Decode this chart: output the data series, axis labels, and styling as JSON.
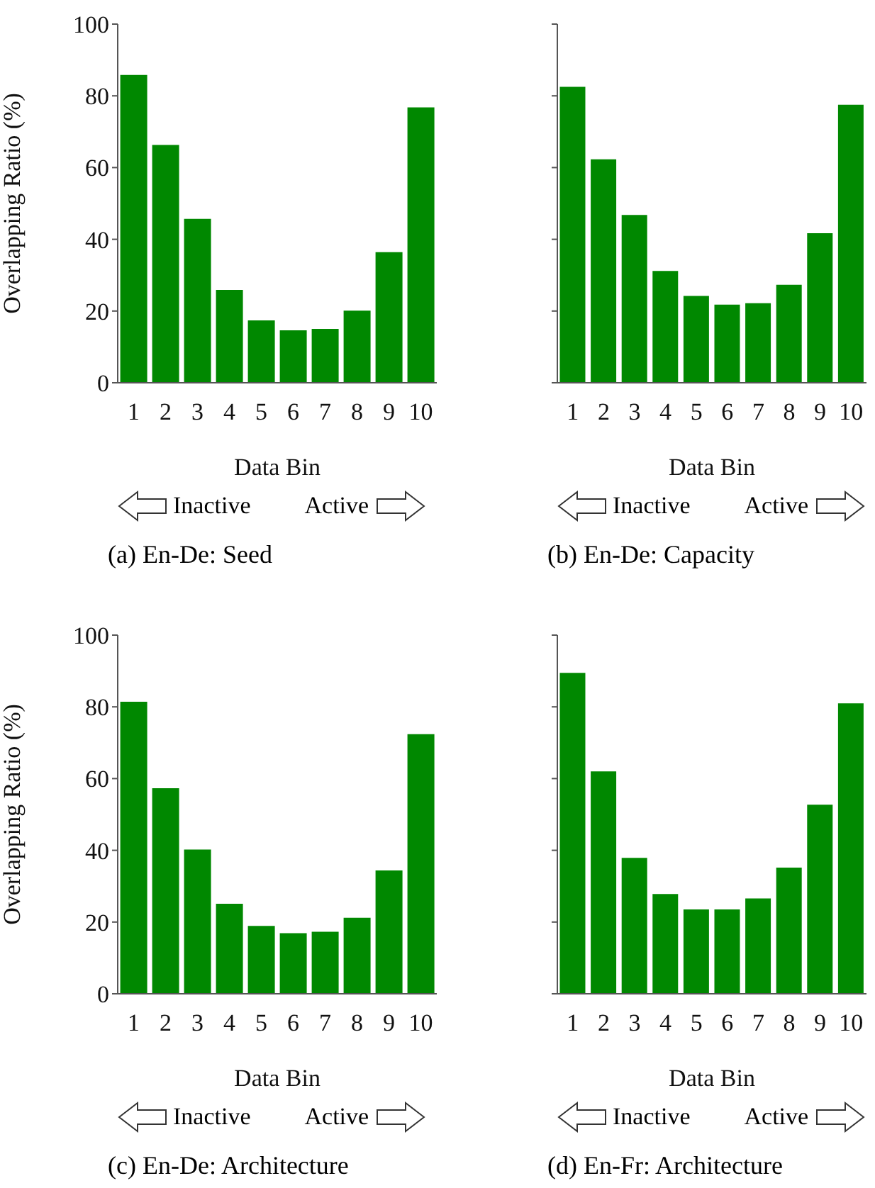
{
  "chart_data": [
    {
      "type": "bar",
      "title": "(a) En-De: Seed",
      "xlabel": "Data Bin",
      "ylabel": "Overlapping Ratio (%)",
      "categories": [
        "1",
        "2",
        "3",
        "4",
        "5",
        "6",
        "7",
        "8",
        "9",
        "10"
      ],
      "values": [
        85.8,
        66.3,
        45.7,
        25.9,
        17.4,
        14.6,
        15.0,
        20.1,
        36.4,
        76.8
      ],
      "color": "#008800",
      "ylim": [
        0,
        100
      ],
      "yticks": [
        0,
        20,
        40,
        60,
        80,
        100
      ],
      "annotations": [
        "Inactive",
        "Active"
      ]
    },
    {
      "type": "bar",
      "title": "(b) En-De: Capacity",
      "xlabel": "Data Bin",
      "categories": [
        "1",
        "2",
        "3",
        "4",
        "5",
        "6",
        "7",
        "8",
        "9",
        "10"
      ],
      "values": [
        82.5,
        62.3,
        46.8,
        31.2,
        24.2,
        21.8,
        22.2,
        27.3,
        41.7,
        77.5
      ],
      "color": "#008800",
      "ylim": [
        0,
        100
      ],
      "yticks": [
        0,
        20,
        40,
        60,
        80,
        100
      ],
      "tick_labels": "x",
      "annotations": [
        "Inactive",
        "Active"
      ]
    },
    {
      "type": "bar",
      "title": "(c) En-De: Architecture",
      "xlabel": "Data Bin",
      "ylabel": "Overlapping Ratio (%)",
      "categories": [
        "1",
        "2",
        "3",
        "4",
        "5",
        "6",
        "7",
        "8",
        "9",
        "10"
      ],
      "values": [
        81.4,
        57.3,
        40.2,
        25.1,
        18.9,
        16.9,
        17.3,
        21.2,
        34.4,
        72.4
      ],
      "color": "#008800",
      "ylim": [
        0,
        100
      ],
      "yticks": [
        0,
        20,
        40,
        60,
        80,
        100
      ],
      "annotations": [
        "Inactive",
        "Active"
      ]
    },
    {
      "type": "bar",
      "title": "(d) En-Fr: Architecture",
      "xlabel": "Data Bin",
      "categories": [
        "1",
        "2",
        "3",
        "4",
        "5",
        "6",
        "7",
        "8",
        "9",
        "10"
      ],
      "values": [
        89.5,
        62.0,
        37.9,
        27.8,
        23.5,
        23.5,
        26.6,
        35.2,
        52.7,
        81.0
      ],
      "color": "#008800",
      "ylim": [
        0,
        100
      ],
      "yticks": [
        0,
        20,
        40,
        60,
        80,
        100
      ],
      "tick_labels": "x",
      "annotations": [
        "Inactive",
        "Active"
      ]
    }
  ]
}
